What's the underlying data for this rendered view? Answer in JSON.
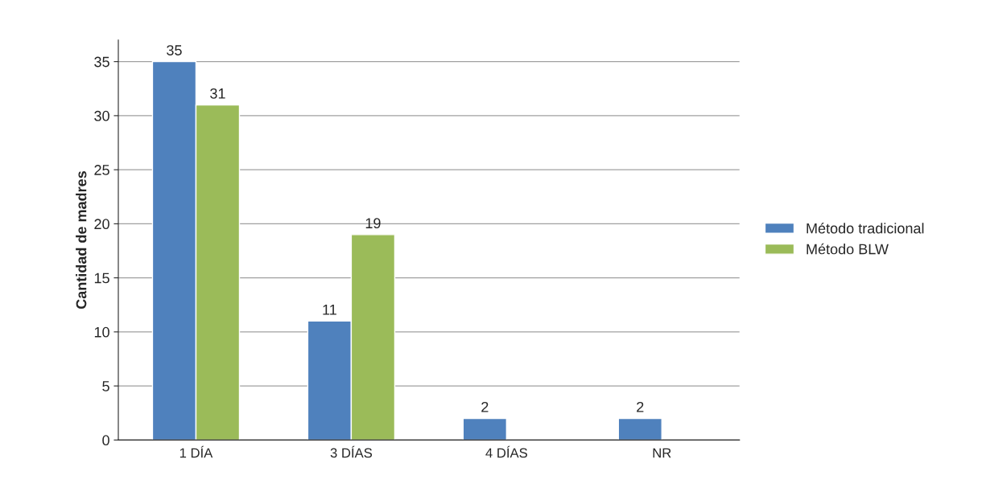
{
  "chart_data": {
    "type": "bar",
    "ylabel": "Cantidad de madres",
    "categories": [
      "1 DÍA",
      "3 DÍAS",
      "4 DÍAS",
      "NR"
    ],
    "series": [
      {
        "name": "Método tradicional",
        "color": "#4f81bd",
        "values": [
          35,
          11,
          2,
          2
        ]
      },
      {
        "name": "Método BLW",
        "color": "#9bbb59",
        "values": [
          31,
          19,
          null,
          null
        ]
      }
    ],
    "ylim": [
      0,
      37
    ],
    "yticks": [
      0,
      5,
      10,
      15,
      20,
      25,
      30,
      35
    ],
    "grid": "y",
    "legend": "right",
    "data_labels": true
  }
}
